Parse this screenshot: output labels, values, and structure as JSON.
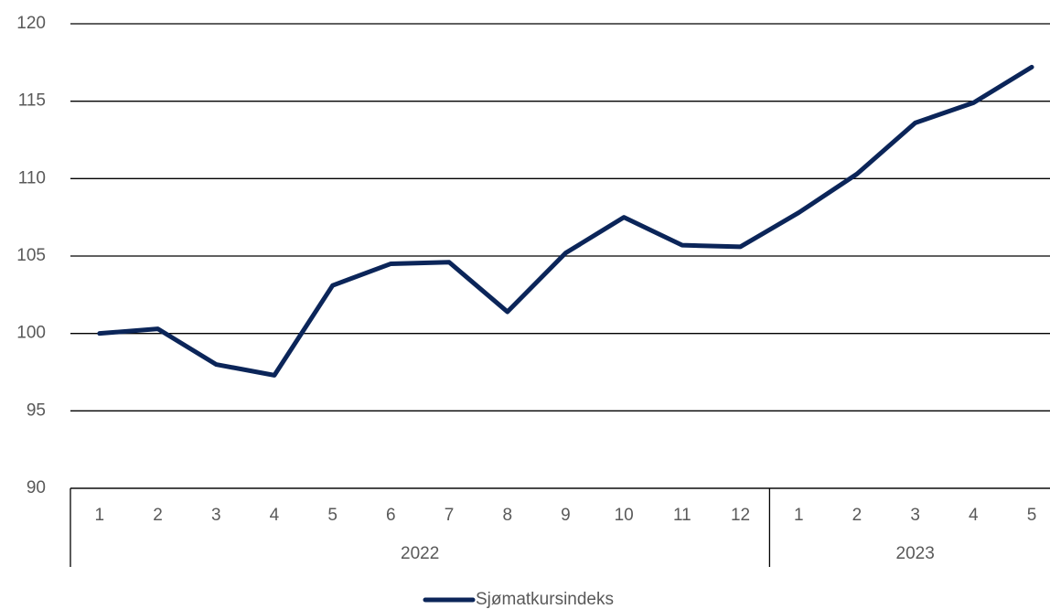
{
  "chart_data": {
    "type": "line",
    "categories": [
      "1",
      "2",
      "3",
      "4",
      "5",
      "6",
      "7",
      "8",
      "9",
      "10",
      "11",
      "12",
      "1",
      "2",
      "3",
      "4",
      "5"
    ],
    "category_groups": [
      {
        "label": "2022",
        "span": 12
      },
      {
        "label": "2023",
        "span": 5
      }
    ],
    "series": [
      {
        "name": "Sjømatkursindeks",
        "color": "#0b2559",
        "values": [
          100.0,
          100.3,
          98.0,
          97.3,
          103.1,
          104.5,
          104.6,
          101.4,
          105.2,
          107.5,
          105.7,
          105.6,
          107.8,
          110.3,
          113.6,
          114.9,
          117.2
        ]
      }
    ],
    "ylim": [
      90,
      120
    ],
    "yticks": [
      90,
      95,
      100,
      105,
      110,
      115,
      120
    ],
    "grid": true,
    "legend": "bottom"
  }
}
